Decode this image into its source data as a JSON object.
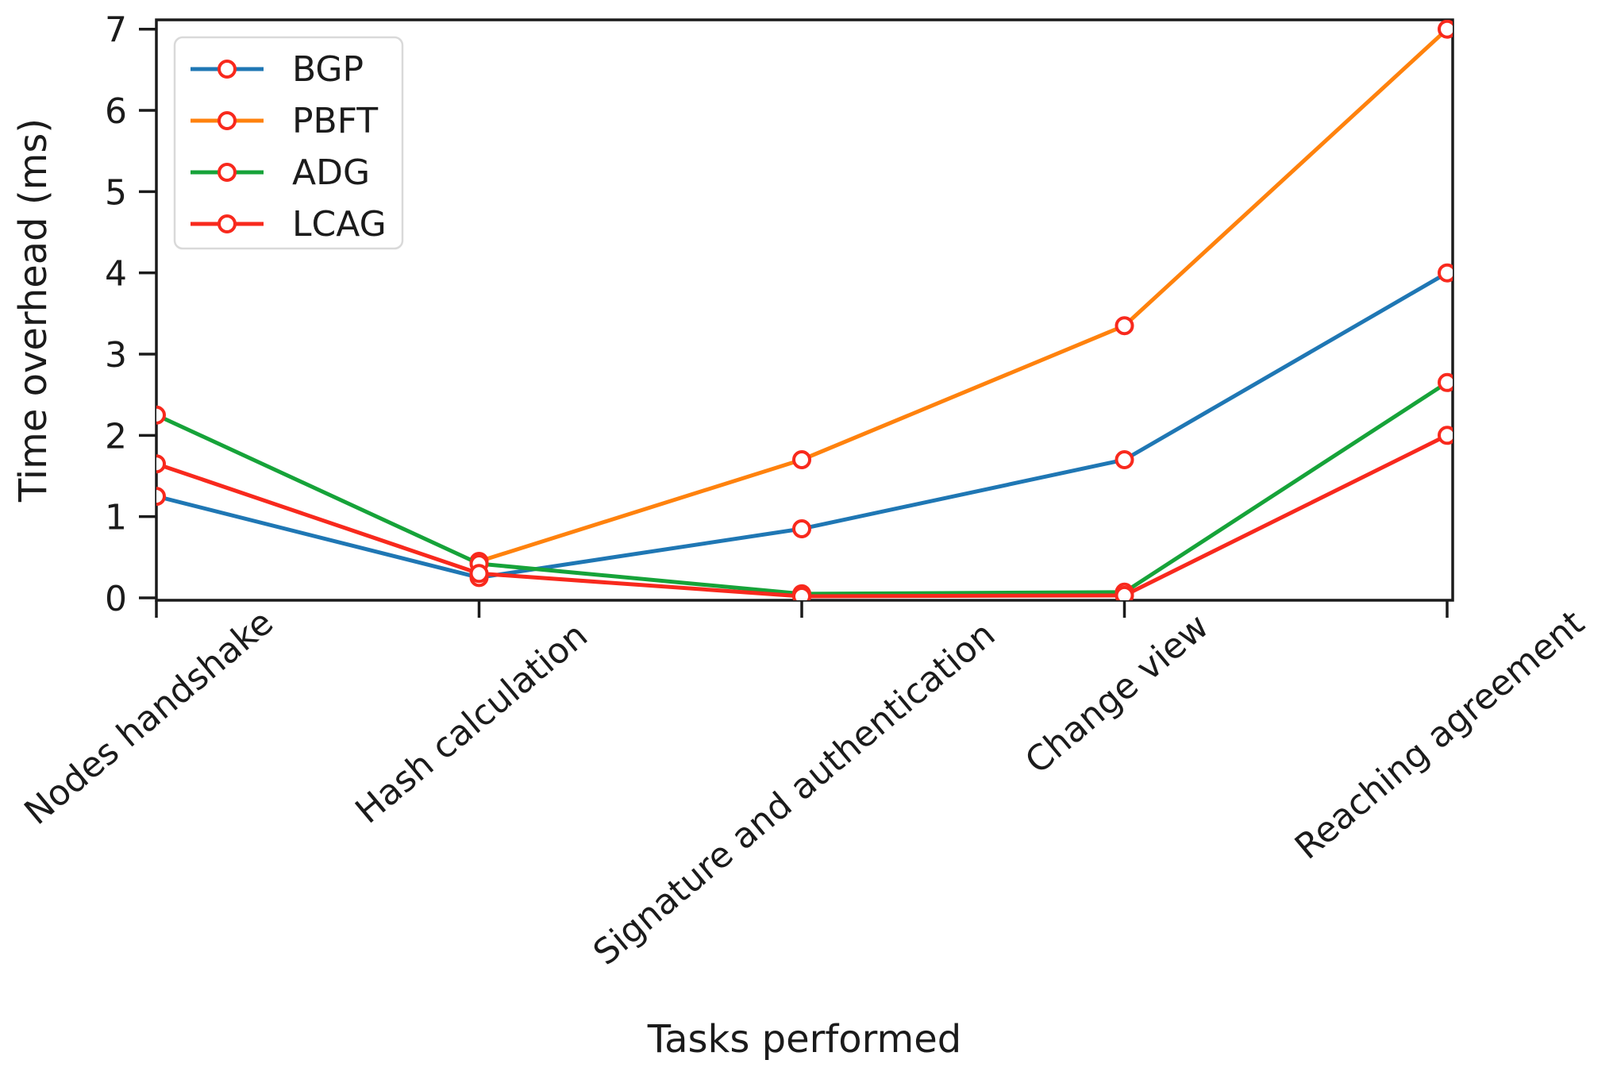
{
  "figure": {
    "background": "#ffffff",
    "spine_color": "#1b1b1b",
    "legend": {
      "position": "upper-left",
      "border_color": "#d9d9d9",
      "background": "#ffffff",
      "entries": [
        "BGP",
        "PBFT",
        "ADG",
        "LCAG"
      ]
    }
  },
  "chart_data": {
    "type": "line",
    "title": "",
    "xlabel": "Tasks performed",
    "ylabel": "Time overhead (ms)",
    "categories": [
      "Nodes handshake",
      "Hash calculation",
      "Signature and authentication",
      "Change view",
      "Reaching agreement"
    ],
    "yticks": [
      0,
      1,
      2,
      3,
      4,
      5,
      6,
      7
    ],
    "ylim": [
      0,
      7.1
    ],
    "grid": false,
    "legend_position": "upper left",
    "marker": {
      "shape": "circle",
      "edge_color": "#f8291d",
      "face_color": "#ffffff"
    },
    "series": [
      {
        "name": "BGP",
        "color": "#1f77b4",
        "values": [
          1.25,
          0.25,
          0.85,
          1.7,
          4.0
        ]
      },
      {
        "name": "PBFT",
        "color": "#ff820d",
        "values": [
          null,
          0.45,
          1.7,
          3.35,
          7.0
        ]
      },
      {
        "name": "ADG",
        "color": "#16a339",
        "values": [
          2.25,
          0.42,
          0.05,
          0.07,
          2.65
        ]
      },
      {
        "name": "LCAG",
        "color": "#f8291d",
        "values": [
          1.65,
          0.3,
          0.02,
          0.03,
          2.0
        ]
      }
    ]
  }
}
